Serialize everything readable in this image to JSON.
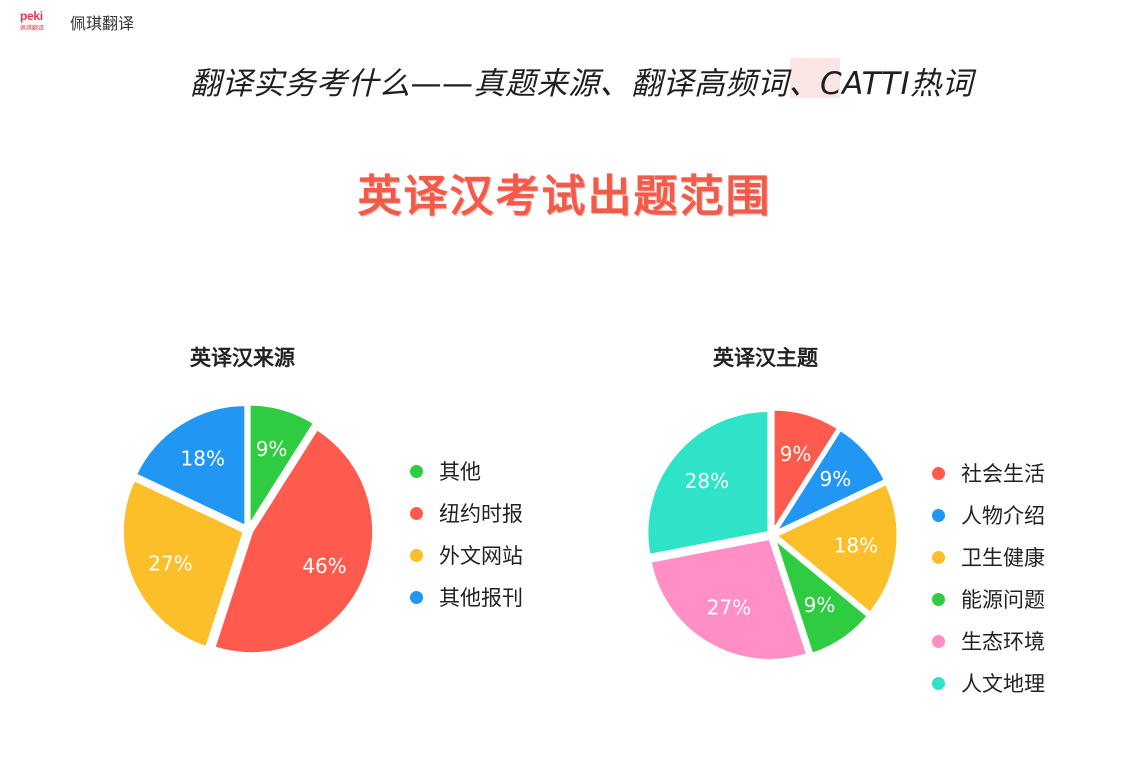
{
  "header": {
    "logo_text": "peki",
    "logo_sub": "佩琪翻译",
    "brand_name": "佩琪翻译"
  },
  "video_title": "翻译实务考什么——真题来源、翻译高频词、CATTI热词",
  "slide_title": "英译汉考试出题范围",
  "chart_data": [
    {
      "type": "pie",
      "title": "英译汉来源",
      "legend_placement": "right",
      "slices": [
        {
          "label": "其他",
          "value": 9,
          "display": "9%",
          "color": "#2ecc40"
        },
        {
          "label": "纽约时报",
          "value": 46,
          "display": "46%",
          "color": "#ff5a4e"
        },
        {
          "label": "外文网站",
          "value": 27,
          "display": "27%",
          "color": "#fbbf2a"
        },
        {
          "label": "其他报刊",
          "value": 18,
          "display": "18%",
          "color": "#2196f3"
        }
      ]
    },
    {
      "type": "pie",
      "title": "英译汉主题",
      "legend_placement": "right",
      "slices": [
        {
          "label": "社会生活",
          "value": 9,
          "display": "9%",
          "color": "#ff5a4e"
        },
        {
          "label": "人物介绍",
          "value": 9,
          "display": "9%",
          "color": "#2196f3"
        },
        {
          "label": "卫生健康",
          "value": 18,
          "display": "18%",
          "color": "#fbbf2a"
        },
        {
          "label": "能源问题",
          "value": 9,
          "display": "9%",
          "color": "#2ecc40"
        },
        {
          "label": "生态环境",
          "value": 27,
          "display": "27%",
          "color": "#ff8fc4"
        },
        {
          "label": "人文地理",
          "value": 28,
          "display": "28%",
          "color": "#2ee3c8"
        }
      ]
    }
  ]
}
